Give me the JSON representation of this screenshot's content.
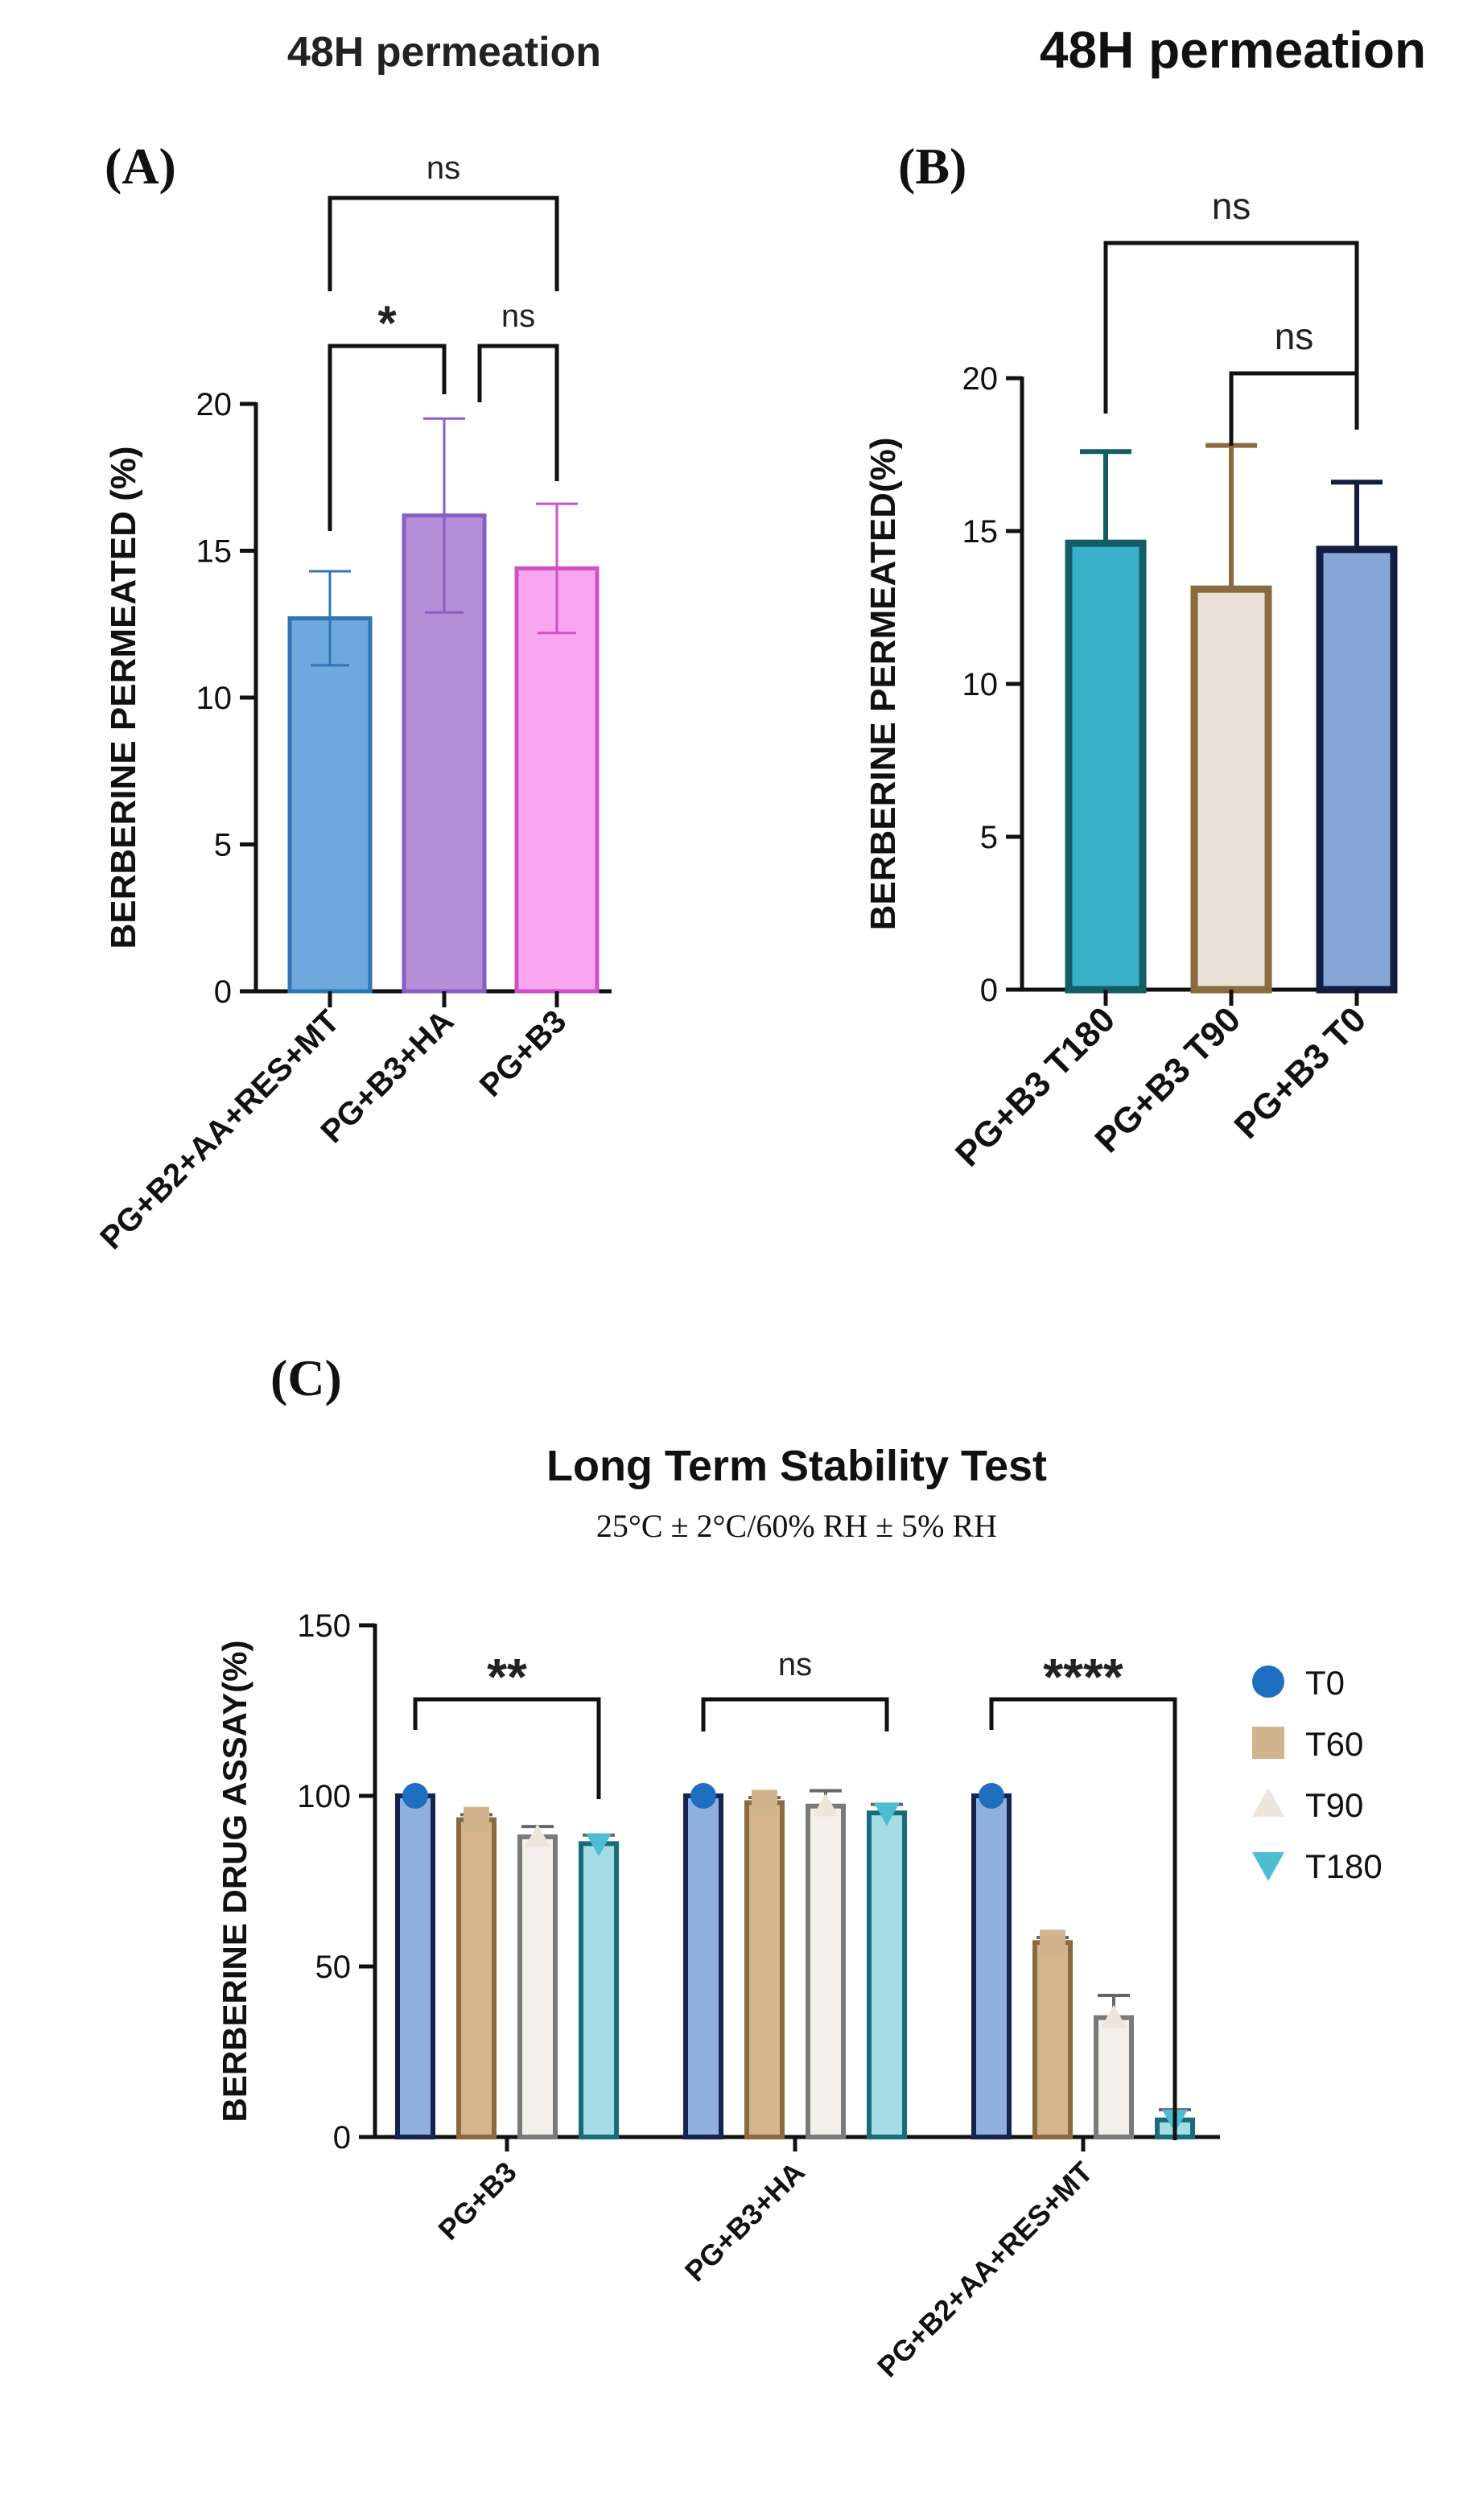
{
  "chart_data": [
    {
      "panel": "(A)",
      "type": "bar",
      "title": "48H permeation",
      "ylabel": "BERBERINE PERMEATED (%)",
      "xlabel": "",
      "ylim": [
        0,
        20
      ],
      "yticks": [
        "0",
        "5",
        "10",
        "15",
        "20"
      ],
      "categories": [
        "PG+B2+AA+RES+MT",
        "PG+B3+HA",
        "PG+B3"
      ],
      "values": [
        12.7,
        16.2,
        14.4
      ],
      "errors": [
        1.6,
        3.3,
        2.2
      ],
      "colors": [
        "#6fa8dc",
        "#b48fd8",
        "#f8a6ef"
      ],
      "edge_colors": [
        "#2e75b6",
        "#8a5cc4",
        "#d050c8"
      ],
      "significance": [
        {
          "from": "PG+B2+AA+RES+MT",
          "to": "PG+B3+HA",
          "label": "*"
        },
        {
          "from": "PG+B3+HA",
          "to": "PG+B3",
          "label": "ns"
        },
        {
          "from": "PG+B2+AA+RES+MT",
          "to": "PG+B3",
          "label": "ns"
        }
      ]
    },
    {
      "panel": "(B)",
      "type": "bar",
      "title": "48H permeation",
      "ylabel": "BERBERINE PERMEATED(%)",
      "xlabel": "",
      "ylim": [
        0,
        20
      ],
      "yticks": [
        "0",
        "5",
        "10",
        "15",
        "20"
      ],
      "categories": [
        "PG+B3 T180",
        "PG+B3 T90",
        "PG+B3 T0"
      ],
      "values": [
        14.6,
        13.1,
        14.4
      ],
      "errors": [
        3.0,
        4.7,
        2.2
      ],
      "colors": [
        "#3ab0c8",
        "#ece1d8",
        "#85a6d4"
      ],
      "edge_colors": [
        "#155d66",
        "#8a6a3e",
        "#121d40"
      ],
      "significance": [
        {
          "from": "PG+B3 T90",
          "to": "PG+B3 T0",
          "label": "ns"
        },
        {
          "from": "PG+B3 T180",
          "to": "PG+B3 T0",
          "label": "ns"
        }
      ]
    },
    {
      "panel": "(C)",
      "type": "bar",
      "title": "Long Term Stability Test",
      "subtitle": "25°C ± 2°C/60% RH ± 5% RH",
      "ylabel": "BERBERINE DRUG ASSAY(%)",
      "xlabel": "",
      "ylim": [
        0,
        150
      ],
      "yticks": [
        "0",
        "50",
        "100",
        "150"
      ],
      "legend_position": "right",
      "categories": [
        "PG+B3",
        "PG+B3+HA",
        "PG+B2+AA+RES+MT"
      ],
      "series": [
        {
          "name": "T0",
          "values": [
            100,
            100,
            100
          ],
          "errors": [
            0,
            0,
            0
          ],
          "color": "#8fb0dc",
          "edge": "#14244e",
          "marker": "circle",
          "marker_color": "#1f6fc0"
        },
        {
          "name": "T60",
          "values": [
            93,
            98,
            57
          ],
          "errors": [
            1.5,
            1.5,
            1.5
          ],
          "color": "#d6b48c",
          "edge": "#8a6a3e",
          "marker": "square",
          "marker_color": "#d2b48c"
        },
        {
          "name": "T90",
          "values": [
            88,
            97,
            35
          ],
          "errors": [
            3,
            4.5,
            6.5
          ],
          "color": "#f3f0ec",
          "edge": "#7a7a7a",
          "marker": "triangle-up",
          "marker_color": "#ece6dd"
        },
        {
          "name": "T180",
          "values": [
            86,
            95,
            5
          ],
          "errors": [
            2.5,
            2.5,
            3
          ],
          "color": "#a6dce6",
          "edge": "#186d78",
          "marker": "triangle-down",
          "marker_color": "#4cbdd3"
        }
      ],
      "significance": [
        {
          "group": "PG+B3",
          "label": "**"
        },
        {
          "group": "PG+B3+HA",
          "label": "ns"
        },
        {
          "group": "PG+B2+AA+RES+MT",
          "label": "****"
        }
      ]
    }
  ]
}
